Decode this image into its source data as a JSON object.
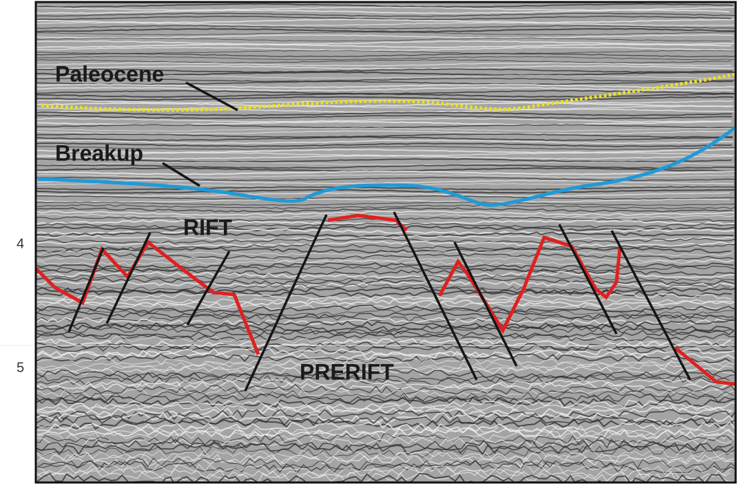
{
  "labels": {
    "paleocene": "Paleocene",
    "breakup": "Breakup",
    "rift": "RIFT",
    "prerift": "PRERIFT"
  },
  "axis": {
    "ticks": [
      "4",
      "5"
    ]
  }
}
